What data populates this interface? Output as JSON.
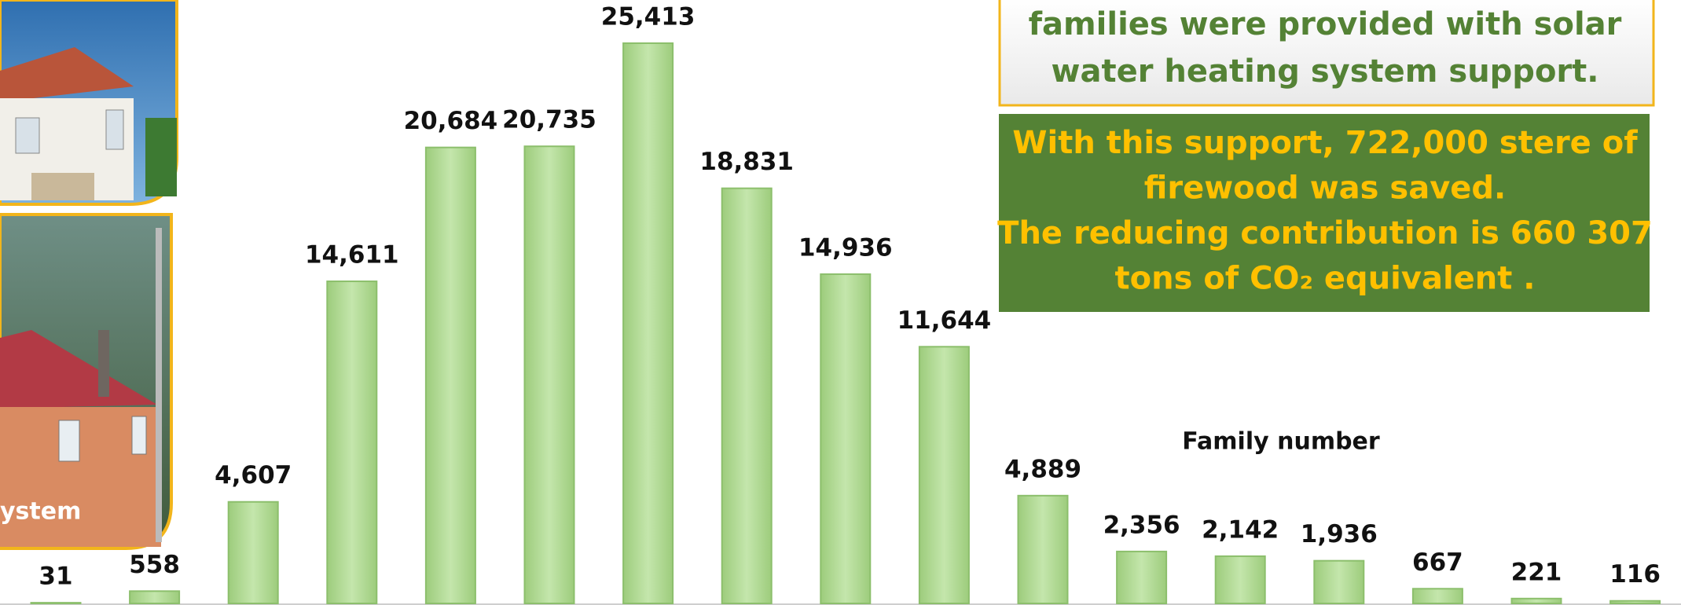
{
  "chart_data": {
    "type": "bar",
    "categories": [
      null,
      null,
      null,
      null,
      null,
      null,
      null,
      null,
      null,
      null,
      null,
      null,
      null,
      null,
      null,
      null,
      null
    ],
    "values": [
      31,
      558,
      4607,
      14611,
      20684,
      20735,
      25413,
      18831,
      14936,
      11644,
      4889,
      2356,
      2142,
      1936,
      667,
      221,
      116
    ],
    "value_labels": [
      "31",
      "558",
      "4,607",
      "14,611",
      "20,684",
      "20,735",
      "25,413",
      "18,831",
      "14,936",
      "11,644",
      "4,889",
      "2,356",
      "2,142",
      "1,936",
      "667",
      "221",
      "116"
    ],
    "color": "#b3db96",
    "ylim": [
      0,
      26000
    ],
    "series_label": "Family number",
    "info_box": [
      "families were provided with solar",
      "water heating system support."
    ],
    "highlight_box": [
      "With this support, 722,000 stere of",
      "firewood was saved.",
      "The reducing contribution is 660 307",
      "tons of CO₂ equivalent ."
    ],
    "photo_caption": "ystem"
  }
}
